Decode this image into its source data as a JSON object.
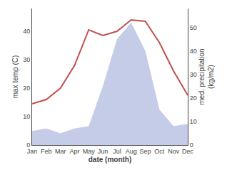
{
  "chart_data": {
    "type": "line",
    "categories": [
      "Jan",
      "Feb",
      "Mar",
      "Apr",
      "May",
      "Jun",
      "Jul",
      "Aug",
      "Sep",
      "Oct",
      "Nov",
      "Dec"
    ],
    "series": [
      {
        "type": "area",
        "axis": "y2",
        "color": "#c5cce8",
        "values": [
          6,
          7,
          5,
          7,
          8,
          25,
          45,
          52,
          40,
          15,
          8,
          9
        ]
      },
      {
        "type": "line",
        "color": "#c0504d",
        "values": [
          14.5,
          16,
          20,
          28,
          40.5,
          38.5,
          40,
          44,
          43.5,
          36,
          26,
          17.5
        ]
      }
    ],
    "xlabel": "date (month)",
    "ylabel": "max temp (C)",
    "y2label": "med. precipitation\n(kg/m2)",
    "ylim": [
      0,
      48
    ],
    "yticks": [
      0,
      10,
      20,
      30,
      40
    ],
    "y2lim": [
      0,
      58
    ],
    "y2ticks": [
      0,
      10,
      20,
      30,
      40,
      50
    ],
    "grid": false
  }
}
